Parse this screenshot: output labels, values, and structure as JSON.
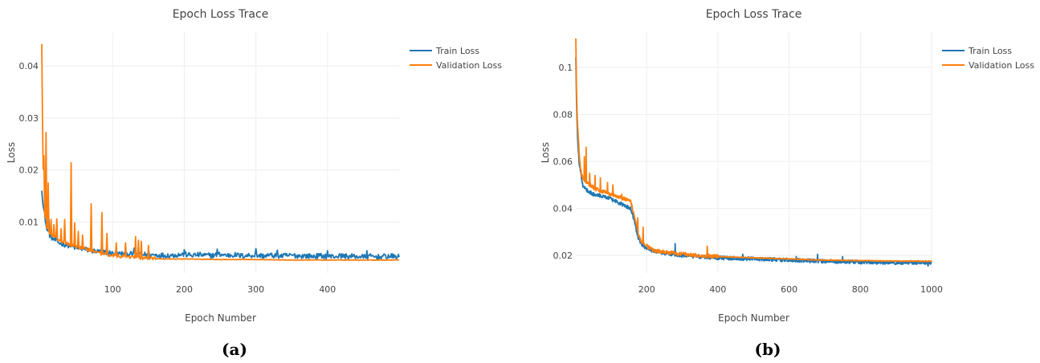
{
  "chart_data": [
    {
      "type": "line",
      "title": "Epoch Loss Trace",
      "xlabel": "Epoch Number",
      "ylabel": "Loss",
      "caption": "(a)",
      "xlim": [
        1,
        500
      ],
      "ylim": [
        0.0002,
        0.0465
      ],
      "xticks": [
        100,
        200,
        300,
        400
      ],
      "yticks": [
        0.01,
        0.02,
        0.03,
        0.04
      ],
      "xtick_labels": [
        "100",
        "200",
        "300",
        "400"
      ],
      "ytick_labels": [
        "0.01",
        "0.02",
        "0.03",
        "0.04"
      ],
      "grid": true,
      "legend_position": "top-right",
      "series": [
        {
          "name": "Train Loss",
          "color": "#1f77b4",
          "points": [
            [
              1,
              0.0165
            ],
            [
              3,
              0.013
            ],
            [
              5,
              0.0115
            ],
            [
              8,
              0.0085
            ],
            [
              12,
              0.0075
            ],
            [
              16,
              0.0068
            ],
            [
              20,
              0.0065
            ],
            [
              25,
              0.006
            ],
            [
              30,
              0.0058
            ],
            [
              35,
              0.0056
            ],
            [
              40,
              0.0055
            ],
            [
              45,
              0.0052
            ],
            [
              50,
              0.005
            ],
            [
              55,
              0.0049
            ],
            [
              60,
              0.0048
            ],
            [
              70,
              0.0045
            ],
            [
              80,
              0.0043
            ],
            [
              90,
              0.0042
            ],
            [
              100,
              0.004
            ],
            [
              110,
              0.0039
            ],
            [
              120,
              0.0039
            ],
            [
              130,
              0.0038
            ],
            [
              140,
              0.0038
            ],
            [
              150,
              0.0037
            ],
            [
              160,
              0.0037
            ],
            [
              170,
              0.0036
            ],
            [
              180,
              0.0036
            ],
            [
              190,
              0.0037
            ],
            [
              200,
              0.0038
            ],
            [
              210,
              0.0036
            ],
            [
              220,
              0.0037
            ],
            [
              230,
              0.0036
            ],
            [
              240,
              0.0036
            ],
            [
              250,
              0.0038
            ],
            [
              260,
              0.0036
            ],
            [
              270,
              0.0037
            ],
            [
              280,
              0.0035
            ],
            [
              290,
              0.0036
            ],
            [
              300,
              0.0036
            ],
            [
              310,
              0.0035
            ],
            [
              320,
              0.0036
            ],
            [
              330,
              0.0035
            ],
            [
              340,
              0.0035
            ],
            [
              350,
              0.0036
            ],
            [
              360,
              0.0035
            ],
            [
              370,
              0.0035
            ],
            [
              380,
              0.0034
            ],
            [
              390,
              0.0035
            ],
            [
              400,
              0.0034
            ],
            [
              410,
              0.0034
            ],
            [
              420,
              0.0035
            ],
            [
              430,
              0.0034
            ],
            [
              440,
              0.0034
            ],
            [
              450,
              0.0033
            ],
            [
              460,
              0.0034
            ],
            [
              470,
              0.0033
            ],
            [
              480,
              0.0034
            ],
            [
              490,
              0.0034
            ],
            [
              500,
              0.0033
            ]
          ],
          "noise": 0.0005,
          "spikes": [
            [
              11,
              0.0105
            ],
            [
              130,
              0.005
            ],
            [
              200,
              0.0047
            ],
            [
              246,
              0.0048
            ],
            [
              300,
              0.0049
            ],
            [
              330,
              0.0046
            ],
            [
              400,
              0.0045
            ],
            [
              455,
              0.0045
            ]
          ]
        },
        {
          "name": "Validation Loss",
          "color": "#ff7f0e",
          "points": [
            [
              1,
              0.0445
            ],
            [
              2,
              0.03
            ],
            [
              3,
              0.02
            ],
            [
              4,
              0.015
            ],
            [
              5,
              0.012
            ],
            [
              7,
              0.0095
            ],
            [
              10,
              0.008
            ],
            [
              15,
              0.0075
            ],
            [
              20,
              0.007
            ],
            [
              25,
              0.0065
            ],
            [
              30,
              0.0062
            ],
            [
              35,
              0.006
            ],
            [
              40,
              0.0055
            ],
            [
              45,
              0.0055
            ],
            [
              50,
              0.0052
            ],
            [
              60,
              0.005
            ],
            [
              70,
              0.0045
            ],
            [
              80,
              0.004
            ],
            [
              90,
              0.0038
            ],
            [
              100,
              0.0036
            ],
            [
              110,
              0.0034
            ],
            [
              120,
              0.0033
            ],
            [
              130,
              0.0032
            ],
            [
              140,
              0.0031
            ],
            [
              150,
              0.003
            ],
            [
              160,
              0.003
            ],
            [
              170,
              0.0029
            ],
            [
              180,
              0.0029
            ],
            [
              200,
              0.0029
            ],
            [
              250,
              0.0028
            ],
            [
              300,
              0.0028
            ],
            [
              350,
              0.0027
            ],
            [
              400,
              0.0027
            ],
            [
              450,
              0.0027
            ],
            [
              500,
              0.0027
            ]
          ],
          "noise": 0.0003,
          "noise_until": 160,
          "spikes": [
            [
              4,
              0.0227
            ],
            [
              7,
              0.0272
            ],
            [
              10,
              0.0175
            ],
            [
              14,
              0.0105
            ],
            [
              18,
              0.0095
            ],
            [
              22,
              0.0106
            ],
            [
              28,
              0.0087
            ],
            [
              33,
              0.0105
            ],
            [
              42,
              0.0214
            ],
            [
              47,
              0.0098
            ],
            [
              52,
              0.0082
            ],
            [
              58,
              0.0075
            ],
            [
              70,
              0.0135
            ],
            [
              85,
              0.0118
            ],
            [
              92,
              0.0078
            ],
            [
              105,
              0.006
            ],
            [
              118,
              0.006
            ],
            [
              132,
              0.0072
            ],
            [
              136,
              0.0065
            ],
            [
              140,
              0.0063
            ],
            [
              150,
              0.0055
            ]
          ]
        }
      ]
    },
    {
      "type": "line",
      "title": "Epoch Loss Trace",
      "xlabel": "Epoch Number",
      "ylabel": "Loss",
      "caption": "(b)",
      "xlim": [
        1,
        1000
      ],
      "ylim": [
        0.0125,
        0.115
      ],
      "xticks": [
        200,
        400,
        600,
        800,
        1000
      ],
      "yticks": [
        0.02,
        0.04,
        0.06,
        0.08,
        0.1
      ],
      "xtick_labels": [
        "200",
        "400",
        "600",
        "800",
        "1000"
      ],
      "ytick_labels": [
        "0.02",
        "0.04",
        "0.06",
        "0.08",
        "0.1"
      ],
      "grid": true,
      "legend_position": "top-right",
      "series": [
        {
          "name": "Train Loss",
          "color": "#1f77b4",
          "points": [
            [
              1,
              0.105
            ],
            [
              3,
              0.085
            ],
            [
              6,
              0.07
            ],
            [
              10,
              0.06
            ],
            [
              15,
              0.055
            ],
            [
              20,
              0.05
            ],
            [
              30,
              0.048
            ],
            [
              40,
              0.047
            ],
            [
              50,
              0.046
            ],
            [
              60,
              0.046
            ],
            [
              80,
              0.045
            ],
            [
              100,
              0.044
            ],
            [
              120,
              0.0425
            ],
            [
              140,
              0.041
            ],
            [
              155,
              0.04
            ],
            [
              165,
              0.035
            ],
            [
              175,
              0.028
            ],
            [
              185,
              0.025
            ],
            [
              200,
              0.023
            ],
            [
              220,
              0.022
            ],
            [
              250,
              0.021
            ],
            [
              300,
              0.02
            ],
            [
              350,
              0.0195
            ],
            [
              400,
              0.019
            ],
            [
              500,
              0.0185
            ],
            [
              600,
              0.018
            ],
            [
              700,
              0.0175
            ],
            [
              800,
              0.0172
            ],
            [
              900,
              0.017
            ],
            [
              1000,
              0.017
            ]
          ],
          "noise": 0.0008,
          "spikes": [
            [
              280,
              0.025
            ],
            [
              470,
              0.0205
            ],
            [
              620,
              0.0195
            ],
            [
              680,
              0.0205
            ],
            [
              750,
              0.0195
            ],
            [
              990,
              0.0155
            ]
          ]
        },
        {
          "name": "Validation Loss",
          "color": "#ff7f0e",
          "points": [
            [
              1,
              0.113
            ],
            [
              3,
              0.09
            ],
            [
              6,
              0.075
            ],
            [
              10,
              0.065
            ],
            [
              15,
              0.056
            ],
            [
              20,
              0.053
            ],
            [
              30,
              0.051
            ],
            [
              40,
              0.05
            ],
            [
              50,
              0.049
            ],
            [
              60,
              0.048
            ],
            [
              80,
              0.047
            ],
            [
              100,
              0.046
            ],
            [
              120,
              0.045
            ],
            [
              140,
              0.044
            ],
            [
              155,
              0.043
            ],
            [
              165,
              0.037
            ],
            [
              175,
              0.03
            ],
            [
              185,
              0.026
            ],
            [
              200,
              0.024
            ],
            [
              220,
              0.022
            ],
            [
              250,
              0.0215
            ],
            [
              300,
              0.0205
            ],
            [
              350,
              0.02
            ],
            [
              400,
              0.0195
            ],
            [
              500,
              0.019
            ],
            [
              600,
              0.0185
            ],
            [
              700,
              0.018
            ],
            [
              800,
              0.0178
            ],
            [
              900,
              0.0176
            ],
            [
              1000,
              0.0175
            ]
          ],
          "noise": 0.0008,
          "noise_until": 400,
          "spikes": [
            [
              12,
              0.06
            ],
            [
              25,
              0.062
            ],
            [
              30,
              0.066
            ],
            [
              40,
              0.055
            ],
            [
              55,
              0.054
            ],
            [
              70,
              0.053
            ],
            [
              90,
              0.051
            ],
            [
              105,
              0.05
            ],
            [
              130,
              0.046
            ],
            [
              175,
              0.036
            ],
            [
              190,
              0.032
            ],
            [
              370,
              0.024
            ]
          ]
        }
      ]
    }
  ]
}
